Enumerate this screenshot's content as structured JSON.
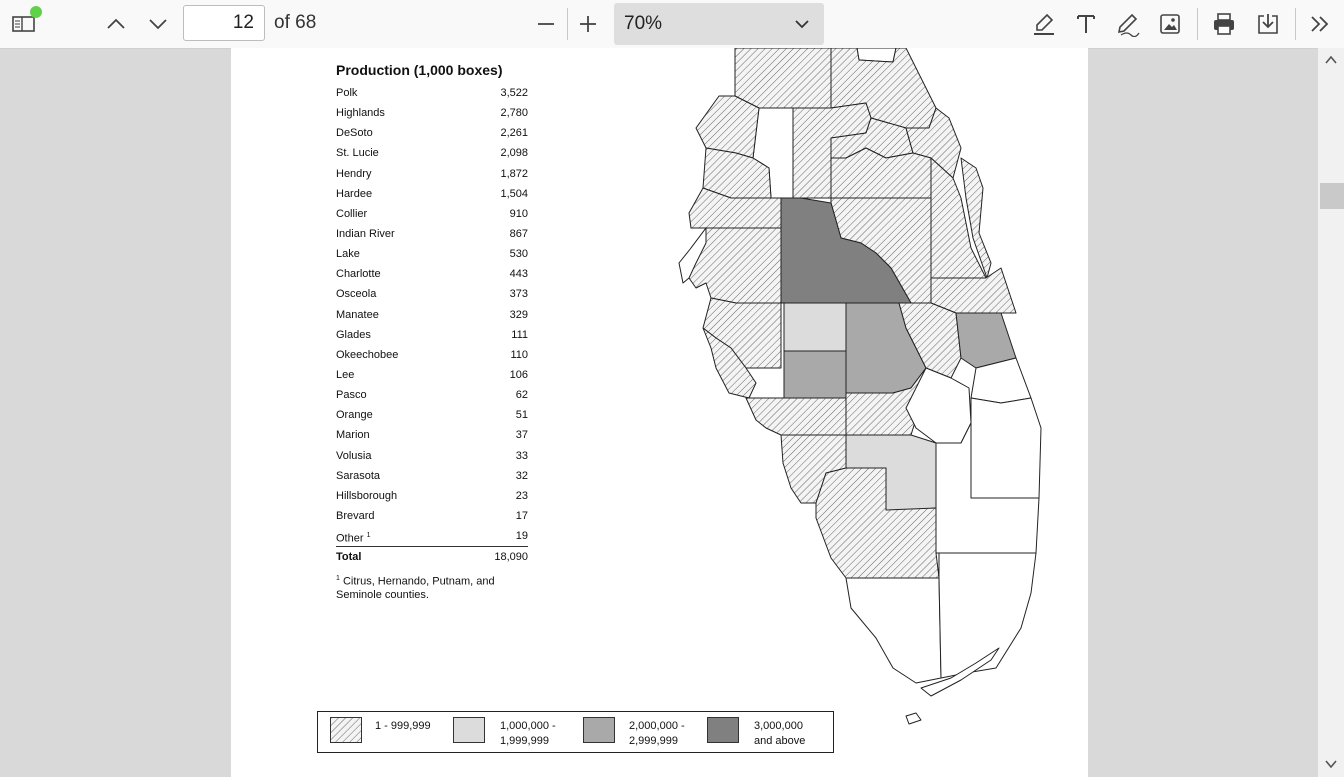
{
  "toolbar": {
    "page_number": "12",
    "page_of": "of 68",
    "zoom": "70%"
  },
  "icons": [
    "sidebar-toggle-icon",
    "chevron-up-icon",
    "chevron-down-icon",
    "zoom-out-icon",
    "zoom-in-icon",
    "highlighter-icon",
    "text-icon",
    "draw-icon",
    "image-icon",
    "printer-icon",
    "save-icon",
    "more-tools-icon"
  ],
  "colors": {
    "range1": "hatched",
    "range2": "#dcdcdc",
    "range3": "#a9a9a9",
    "range4": "#808080",
    "notification_dot": "#5fd24a"
  },
  "production": {
    "title": "Production (1,000 boxes)",
    "rows": [
      {
        "county": "Polk",
        "value": "3,522"
      },
      {
        "county": "Highlands",
        "value": "2,780"
      },
      {
        "county": "DeSoto",
        "value": "2,261"
      },
      {
        "county": "St. Lucie",
        "value": "2,098"
      },
      {
        "county": "Hendry",
        "value": "1,872"
      },
      {
        "county": "Hardee",
        "value": "1,504"
      },
      {
        "county": "Collier",
        "value": "910"
      },
      {
        "county": "Indian River",
        "value": "867"
      },
      {
        "county": "Lake",
        "value": "530"
      },
      {
        "county": "Charlotte",
        "value": "443"
      },
      {
        "county": "Osceola",
        "value": "373"
      },
      {
        "county": "Manatee",
        "value": "329"
      },
      {
        "county": "Glades",
        "value": "111"
      },
      {
        "county": "Okeechobee",
        "value": "110"
      },
      {
        "county": "Lee",
        "value": "106"
      },
      {
        "county": "Pasco",
        "value": "62"
      },
      {
        "county": "Orange",
        "value": "51"
      },
      {
        "county": "Marion",
        "value": "37"
      },
      {
        "county": "Volusia",
        "value": "33"
      },
      {
        "county": "Sarasota",
        "value": "32"
      },
      {
        "county": "Hillsborough",
        "value": "23"
      },
      {
        "county": "Brevard",
        "value": "17"
      }
    ],
    "other_label": "Other",
    "other_sup": "1",
    "other_value": "19",
    "total_label": "Total",
    "total_value": "18,090",
    "footnote_sup": "1",
    "footnote": "Citrus, Hernando, Putnam, and Seminole counties."
  },
  "legend": [
    {
      "line1": "1 - 999,999",
      "line2": ""
    },
    {
      "line1": "1,000,000 -",
      "line2": "1,999,999"
    },
    {
      "line1": "2,000,000 -",
      "line2": "2,999,999"
    },
    {
      "line1": "3,000,000",
      "line2": "and above"
    }
  ]
}
